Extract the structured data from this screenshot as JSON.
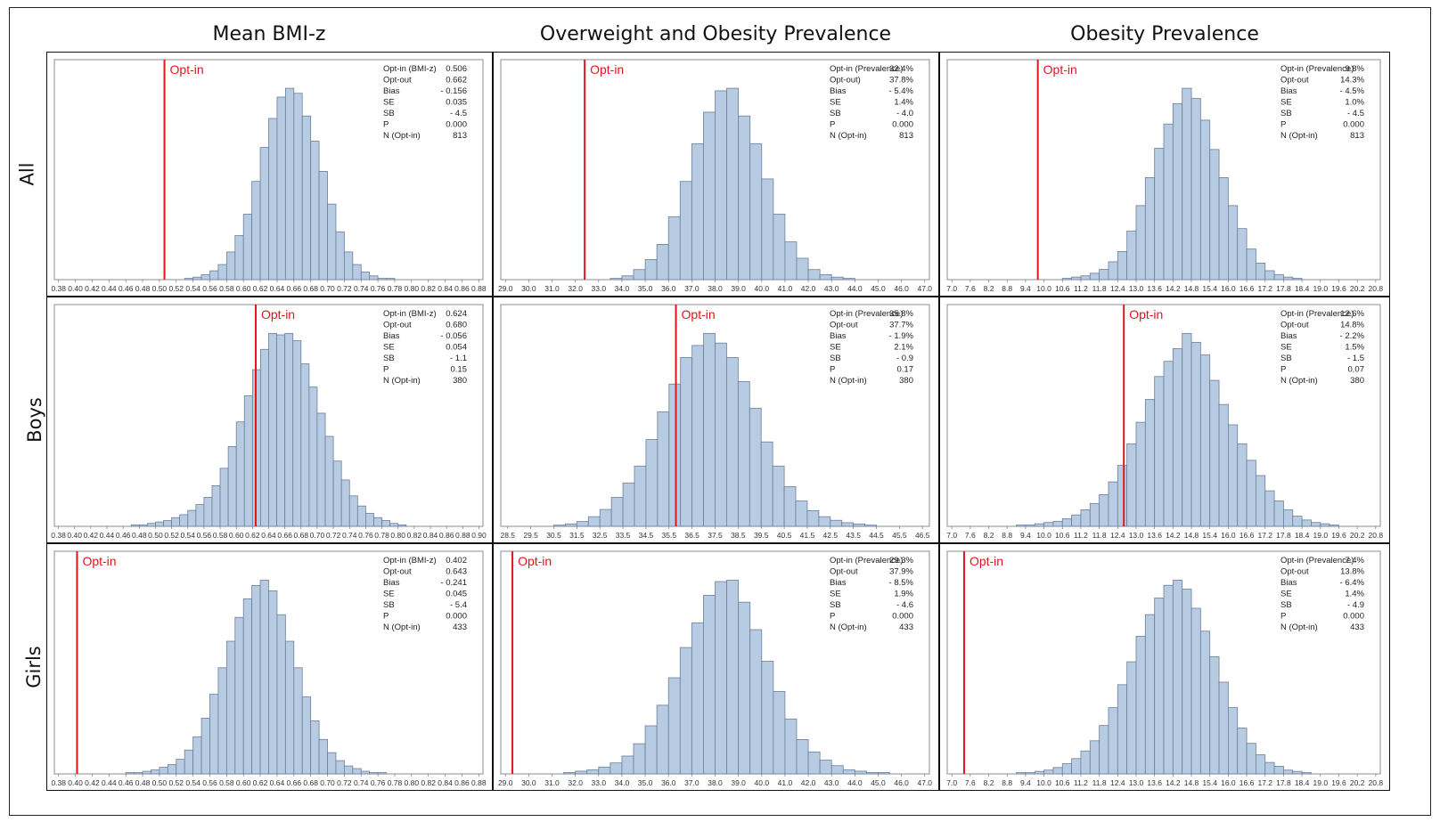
{
  "column_titles": [
    "Mean BMI-z",
    "Overweight and Obesity Prevalence",
    "Obesity Prevalence"
  ],
  "row_titles": [
    "All",
    "Boys",
    "Girls"
  ],
  "colors": {
    "bar_fill": "#b7cbe3",
    "bar_edge": "#6b7f99",
    "reference_line": "#e3141b"
  },
  "chart_data": [
    {
      "type": "bar",
      "row": "All",
      "column": "Mean BMI-z",
      "x_ticks": [
        "0.38",
        "0.40",
        "0.42",
        "0.44",
        "0.46",
        "0.48",
        "0.50",
        "0.52",
        "0.54",
        "0.56",
        "0.58",
        "0.60",
        "0.62",
        "0.64",
        "0.66",
        "0.68",
        "0.70",
        "0.72",
        "0.74",
        "0.76",
        "0.78",
        "0.80",
        "0.82",
        "0.84",
        "0.86",
        "0.88"
      ],
      "xlim": [
        0.375,
        0.885
      ],
      "bin_start": 0.51,
      "bin_width": 0.01,
      "counts": [
        0,
        0,
        1,
        2,
        4,
        7,
        12,
        22,
        35,
        52,
        78,
        105,
        128,
        145,
        152,
        148,
        130,
        110,
        86,
        60,
        38,
        22,
        12,
        6,
        3,
        1,
        1,
        0
      ],
      "reference_line": {
        "label": "Opt-in",
        "x": 0.506
      },
      "stats": [
        [
          "Opt-in (BMI-z)",
          "0.506"
        ],
        [
          "Opt-out",
          "0.662"
        ],
        [
          "Bias",
          "- 0.156"
        ],
        [
          "SE",
          "0.035"
        ],
        [
          "SB",
          "- 4.5"
        ],
        [
          "P",
          "0.000"
        ],
        [
          "N (Opt-in)",
          "813"
        ]
      ]
    },
    {
      "type": "bar",
      "row": "All",
      "column": "Overweight and Obesity Prevalence",
      "x_ticks": [
        "29.0",
        "30.0",
        "31.0",
        "32.0",
        "33.0",
        "34.0",
        "35.0",
        "36.0",
        "37.0",
        "38.0",
        "39.0",
        "40.0",
        "41.0",
        "42.0",
        "43.0",
        "44.0",
        "45.0",
        "46.0",
        "47.0"
      ],
      "xlim": [
        28.8,
        47.2
      ],
      "bin_start": 33.0,
      "bin_width": 0.5,
      "counts": [
        0,
        1,
        3,
        8,
        16,
        28,
        50,
        78,
        108,
        133,
        150,
        152,
        130,
        108,
        80,
        52,
        30,
        17,
        8,
        4,
        2,
        1
      ],
      "reference_line": {
        "label": "Opt-in",
        "x": 32.4
      },
      "stats": [
        [
          "Opt-in (Prevalence)",
          "32.4%"
        ],
        [
          "Opt-out)",
          "37.8%"
        ],
        [
          "Bias",
          "- 5.4%"
        ],
        [
          "SE",
          "1.4%"
        ],
        [
          "SB",
          "- 4.0"
        ],
        [
          "P",
          "0.000"
        ],
        [
          "N (Opt-in)",
          "813"
        ]
      ]
    },
    {
      "type": "bar",
      "row": "All",
      "column": "Obesity Prevalence",
      "x_ticks": [
        "7.0",
        "7.6",
        "8.2",
        "8.8",
        "9.4",
        "10.0",
        "10.6",
        "11.2",
        "11.8",
        "12.4",
        "13.0",
        "13.6",
        "14.2",
        "14.8",
        "15.4",
        "16.0",
        "16.6",
        "17.2",
        "17.8",
        "18.4",
        "19.0",
        "19.6",
        "20.2",
        "20.8"
      ],
      "xlim": [
        6.85,
        20.95
      ],
      "bin_start": 10.3,
      "bin_width": 0.3,
      "counts": [
        0,
        1,
        2,
        3,
        5,
        8,
        14,
        22,
        38,
        58,
        80,
        103,
        122,
        138,
        150,
        142,
        125,
        102,
        80,
        58,
        40,
        24,
        13,
        7,
        4,
        2,
        1
      ],
      "reference_line": {
        "label": "Opt-in",
        "x": 9.8
      },
      "stats": [
        [
          "Opt-in (Prevalence)",
          "9.8%"
        ],
        [
          "Opt-out",
          "14.3%"
        ],
        [
          "Bias",
          "- 4.5%"
        ],
        [
          "SE",
          "1.0%"
        ],
        [
          "SB",
          "- 4.5"
        ],
        [
          "P",
          "0.000"
        ],
        [
          "N (Opt-in)",
          "813"
        ]
      ]
    },
    {
      "type": "bar",
      "row": "Boys",
      "column": "Mean BMI-z",
      "x_ticks": [
        "0.38",
        "0.40",
        "0.42",
        "0.44",
        "0.46",
        "0.48",
        "0.50",
        "0.52",
        "0.54",
        "0.56",
        "0.58",
        "0.60",
        "0.62",
        "0.64",
        "0.66",
        "0.68",
        "0.70",
        "0.72",
        "0.74",
        "0.76",
        "0.78",
        "0.80",
        "0.82",
        "0.84",
        "0.86",
        "0.88",
        "0.90"
      ],
      "xlim": [
        0.375,
        0.905
      ],
      "bin_start": 0.47,
      "bin_width": 0.01,
      "counts": [
        1,
        1,
        2,
        3,
        4,
        6,
        8,
        11,
        15,
        20,
        28,
        40,
        55,
        72,
        90,
        108,
        122,
        133,
        132,
        133,
        128,
        112,
        96,
        78,
        62,
        45,
        32,
        21,
        14,
        9,
        6,
        4,
        2,
        1
      ],
      "reference_line": {
        "label": "Opt-in",
        "x": 0.624
      },
      "stats": [
        [
          "Opt-in (BMI-z)",
          "0.624"
        ],
        [
          "Opt-out",
          "0.680"
        ],
        [
          "Bias",
          "- 0.056"
        ],
        [
          "SE",
          "0.054"
        ],
        [
          "SB",
          "- 1.1"
        ],
        [
          "P",
          "0.15"
        ],
        [
          "N (Opt-in)",
          "380"
        ]
      ]
    },
    {
      "type": "bar",
      "row": "Boys",
      "column": "Overweight and Obesity Prevalence",
      "x_ticks": [
        "28.5",
        "29.5",
        "30.5",
        "31.5",
        "32.5",
        "33.5",
        "34.5",
        "35.5",
        "36.5",
        "37.5",
        "38.5",
        "39.5",
        "40.5",
        "41.5",
        "42.5",
        "43.5",
        "44.5",
        "45.5",
        "46.5"
      ],
      "xlim": [
        28.2,
        46.8
      ],
      "bin_start": 30.5,
      "bin_width": 0.5,
      "counts": [
        1,
        2,
        4,
        8,
        14,
        24,
        36,
        50,
        72,
        95,
        118,
        140,
        150,
        160,
        152,
        140,
        120,
        98,
        70,
        50,
        33,
        21,
        13,
        8,
        5,
        3,
        2,
        1
      ],
      "reference_line": {
        "label": "Opt-in",
        "x": 35.8
      },
      "stats": [
        [
          "Opt-in (Prevalence)",
          "35.8%"
        ],
        [
          "Opt-out",
          "37.7%"
        ],
        [
          "Bias",
          "- 1.9%"
        ],
        [
          "SE",
          "2.1%"
        ],
        [
          "SB",
          "- 0.9"
        ],
        [
          "P",
          "0.17"
        ],
        [
          "N (Opt-in)",
          "380"
        ]
      ]
    },
    {
      "type": "bar",
      "row": "Boys",
      "column": "Obesity Prevalence",
      "x_ticks": [
        "7.0",
        "7.6",
        "8.2",
        "8.8",
        "9.4",
        "10.0",
        "10.6",
        "11.2",
        "11.8",
        "12.4",
        "13.0",
        "13.6",
        "14.2",
        "14.8",
        "15.4",
        "16.0",
        "16.6",
        "17.2",
        "17.8",
        "18.4",
        "19.0",
        "19.6",
        "20.2",
        "20.8"
      ],
      "xlim": [
        6.85,
        20.95
      ],
      "bin_start": 9.1,
      "bin_width": 0.3,
      "counts": [
        1,
        1,
        2,
        3,
        4,
        6,
        9,
        13,
        18,
        25,
        35,
        48,
        65,
        82,
        100,
        118,
        130,
        140,
        152,
        145,
        135,
        115,
        96,
        80,
        65,
        52,
        40,
        28,
        20,
        13,
        8,
        5,
        3,
        2,
        1
      ],
      "reference_line": {
        "label": "Opt-in",
        "x": 12.6
      },
      "stats": [
        [
          "Opt-in (Prevalence)",
          "12.6%"
        ],
        [
          "Opt-out",
          "14.8%"
        ],
        [
          "Bias",
          "- 2.2%"
        ],
        [
          "SE",
          "1.5%"
        ],
        [
          "SB",
          "- 1.5"
        ],
        [
          "P",
          "0.07"
        ],
        [
          "N (Opt-in)",
          "380"
        ]
      ]
    },
    {
      "type": "bar",
      "row": "Girls",
      "column": "Mean BMI-z",
      "x_ticks": [
        "0.38",
        "0.40",
        "0.42",
        "0.44",
        "0.46",
        "0.48",
        "0.50",
        "0.52",
        "0.54",
        "0.56",
        "0.58",
        "0.60",
        "0.62",
        "0.64",
        "0.66",
        "0.68",
        "0.70",
        "0.72",
        "0.74",
        "0.76",
        "0.78",
        "0.80",
        "0.82",
        "0.84",
        "0.86",
        "0.88"
      ],
      "xlim": [
        0.375,
        0.885
      ],
      "bin_start": 0.46,
      "bin_width": 0.01,
      "counts": [
        1,
        1,
        2,
        3,
        5,
        7,
        11,
        18,
        28,
        42,
        60,
        80,
        100,
        118,
        132,
        142,
        146,
        138,
        120,
        100,
        80,
        58,
        40,
        26,
        16,
        10,
        6,
        4,
        2,
        1,
        1
      ],
      "reference_line": {
        "label": "Opt-in",
        "x": 0.402
      },
      "stats": [
        [
          "Opt-in (BMI-z)",
          "0.402"
        ],
        [
          "Opt-out",
          "0.643"
        ],
        [
          "Bias",
          "- 0.241"
        ],
        [
          "SE",
          "0.045"
        ],
        [
          "SB",
          "- 5.4"
        ],
        [
          "P",
          "0.000"
        ],
        [
          "N (Opt-in)",
          "433"
        ]
      ]
    },
    {
      "type": "bar",
      "row": "Girls",
      "column": "Overweight and Obesity Prevalence",
      "x_ticks": [
        "29.0",
        "30.0",
        "31.0",
        "32.0",
        "33.0",
        "34.0",
        "35.0",
        "36.0",
        "37.0",
        "38.0",
        "39.0",
        "40.0",
        "41.0",
        "42.0",
        "43.0",
        "44.0",
        "45.0",
        "46.0",
        "47.0"
      ],
      "xlim": [
        28.8,
        47.2
      ],
      "bin_start": 31.5,
      "bin_width": 0.5,
      "counts": [
        1,
        2,
        3,
        5,
        8,
        13,
        22,
        35,
        50,
        70,
        92,
        110,
        130,
        140,
        141,
        125,
        105,
        82,
        60,
        40,
        25,
        16,
        10,
        6,
        3,
        2,
        1,
        1
      ],
      "reference_line": {
        "label": "Opt-in",
        "x": 29.3
      },
      "stats": [
        [
          "Opt-in (Prevalence)",
          "29.3%"
        ],
        [
          "Opt-out",
          "37.9%"
        ],
        [
          "Bias",
          "- 8.5%"
        ],
        [
          "SE",
          "1.9%"
        ],
        [
          "SB",
          "- 4.6"
        ],
        [
          "P",
          "0.000"
        ],
        [
          "N (Opt-in)",
          "433"
        ]
      ]
    },
    {
      "type": "bar",
      "row": "Girls",
      "column": "Obesity Prevalence",
      "x_ticks": [
        "7.0",
        "7.6",
        "8.2",
        "8.8",
        "9.4",
        "10.0",
        "10.6",
        "11.2",
        "11.8",
        "12.4",
        "13.0",
        "13.6",
        "14.2",
        "14.8",
        "15.4",
        "16.0",
        "16.6",
        "17.2",
        "17.8",
        "18.4",
        "19.0",
        "19.6",
        "20.2",
        "20.8"
      ],
      "xlim": [
        6.85,
        20.95
      ],
      "bin_start": 9.1,
      "bin_width": 0.3,
      "counts": [
        1,
        1,
        2,
        3,
        5,
        8,
        12,
        18,
        26,
        38,
        52,
        70,
        88,
        108,
        125,
        138,
        148,
        152,
        145,
        130,
        112,
        92,
        72,
        52,
        36,
        24,
        15,
        9,
        6,
        3,
        2,
        1
      ],
      "reference_line": {
        "label": "Opt-in",
        "x": 7.4
      },
      "stats": [
        [
          "Opt-in (Prevalence)",
          "7.4%"
        ],
        [
          "Opt-out",
          "13.8%"
        ],
        [
          "Bias",
          "- 6.4%"
        ],
        [
          "SE",
          "1.4%"
        ],
        [
          "SB",
          "- 4.9"
        ],
        [
          "P",
          "0.000"
        ],
        [
          "N (Opt-in)",
          "433"
        ]
      ]
    }
  ]
}
